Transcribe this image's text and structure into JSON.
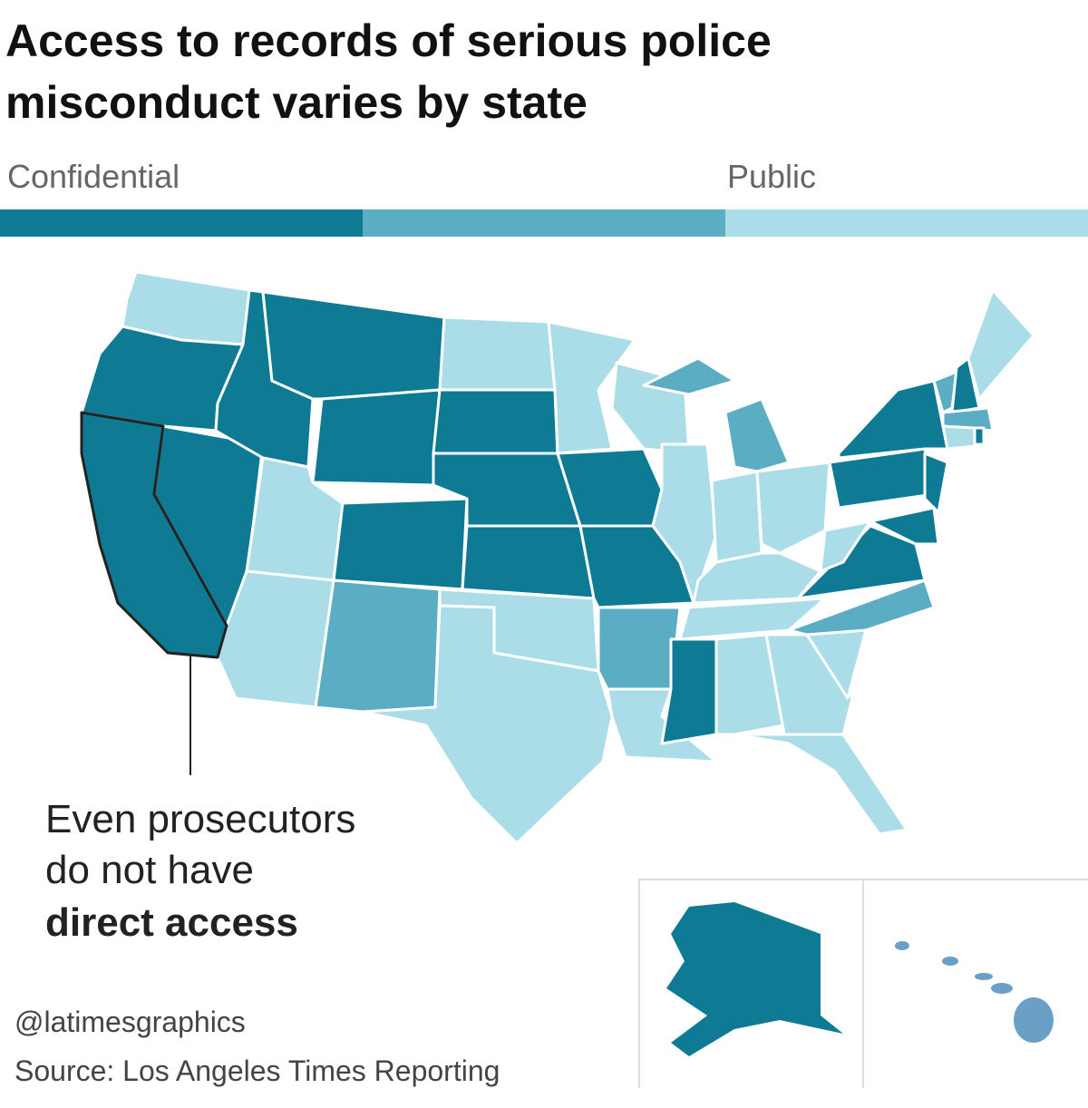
{
  "title": [
    "Access to records of serious police",
    "misconduct varies by state"
  ],
  "legend": {
    "low_label": "Confidential",
    "high_label": "Public"
  },
  "annotation": {
    "lines": [
      "Even prosecutors",
      "do not have"
    ],
    "emphasis": "direct access"
  },
  "credit": "@latimesgraphics",
  "source": "Source: Los Angeles Times Reporting"
}
